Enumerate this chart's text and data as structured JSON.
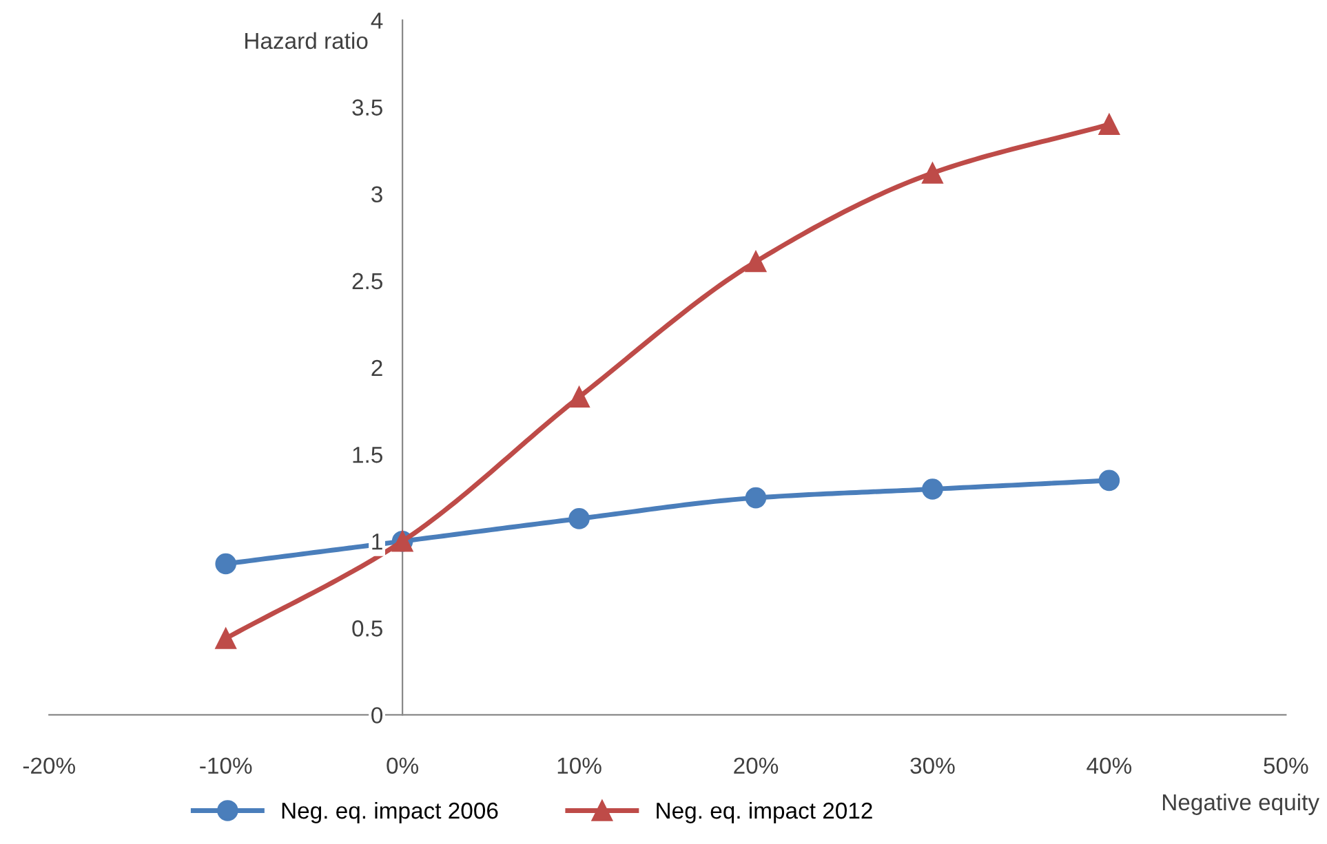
{
  "chart_data": {
    "type": "line",
    "xlabel": "Negative equity",
    "ylabel": "Hazard ratio",
    "x": [
      -10,
      0,
      10,
      20,
      30,
      40
    ],
    "series": [
      {
        "name": "Neg. eq. impact 2006",
        "color": "#4a7ebb",
        "marker": "circle",
        "values": [
          0.87,
          1.0,
          1.13,
          1.25,
          1.3,
          1.35
        ]
      },
      {
        "name": "Neg. eq. impact 2012",
        "color": "#be4b48",
        "marker": "triangle",
        "values": [
          0.44,
          1.0,
          1.83,
          2.61,
          3.12,
          3.4
        ]
      }
    ],
    "xlim": [
      -20,
      50
    ],
    "ylim": [
      0,
      4
    ],
    "xticks": [
      {
        "value": -20,
        "label": "-20%"
      },
      {
        "value": -10,
        "label": "-10%"
      },
      {
        "value": 0,
        "label": "0%"
      },
      {
        "value": 10,
        "label": "10%"
      },
      {
        "value": 20,
        "label": "20%"
      },
      {
        "value": 30,
        "label": "30%"
      },
      {
        "value": 40,
        "label": "40%"
      },
      {
        "value": 50,
        "label": "50%"
      }
    ],
    "yticks": [
      0,
      0.5,
      1,
      1.5,
      2,
      2.5,
      3,
      3.5,
      4
    ],
    "grid": false,
    "legend": "bottom",
    "line_style": "solid"
  }
}
